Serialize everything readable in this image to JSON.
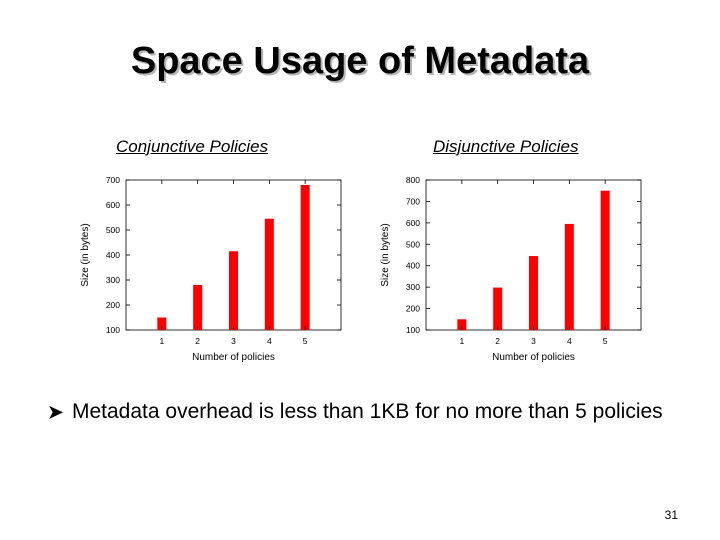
{
  "slide": {
    "title": "Space Usage of Metadata",
    "bullet": "Metadata overhead is less than 1KB for no more than 5 policies",
    "page_number": "31"
  },
  "chart_data": [
    {
      "type": "bar",
      "caption": "Conjunctive Policies",
      "xlabel": "Number of policies",
      "ylabel": "Size (in bytes)",
      "categories": [
        "1",
        "2",
        "3",
        "4",
        "5"
      ],
      "values": [
        150,
        280,
        415,
        545,
        680
      ],
      "ylim": [
        100,
        700
      ],
      "yticks": [
        100,
        200,
        300,
        400,
        500,
        600,
        700
      ],
      "bar_color": "#ff0000",
      "grid": false
    },
    {
      "type": "bar",
      "caption": "Disjunctive Policies",
      "xlabel": "Number of policies",
      "ylabel": "Size (in bytes)",
      "categories": [
        "1",
        "2",
        "3",
        "4",
        "5"
      ],
      "values": [
        150,
        298,
        445,
        595,
        750
      ],
      "ylim": [
        100,
        800
      ],
      "yticks": [
        100,
        200,
        300,
        400,
        500,
        600,
        700,
        800
      ],
      "bar_color": "#ff0000",
      "grid": false
    }
  ]
}
